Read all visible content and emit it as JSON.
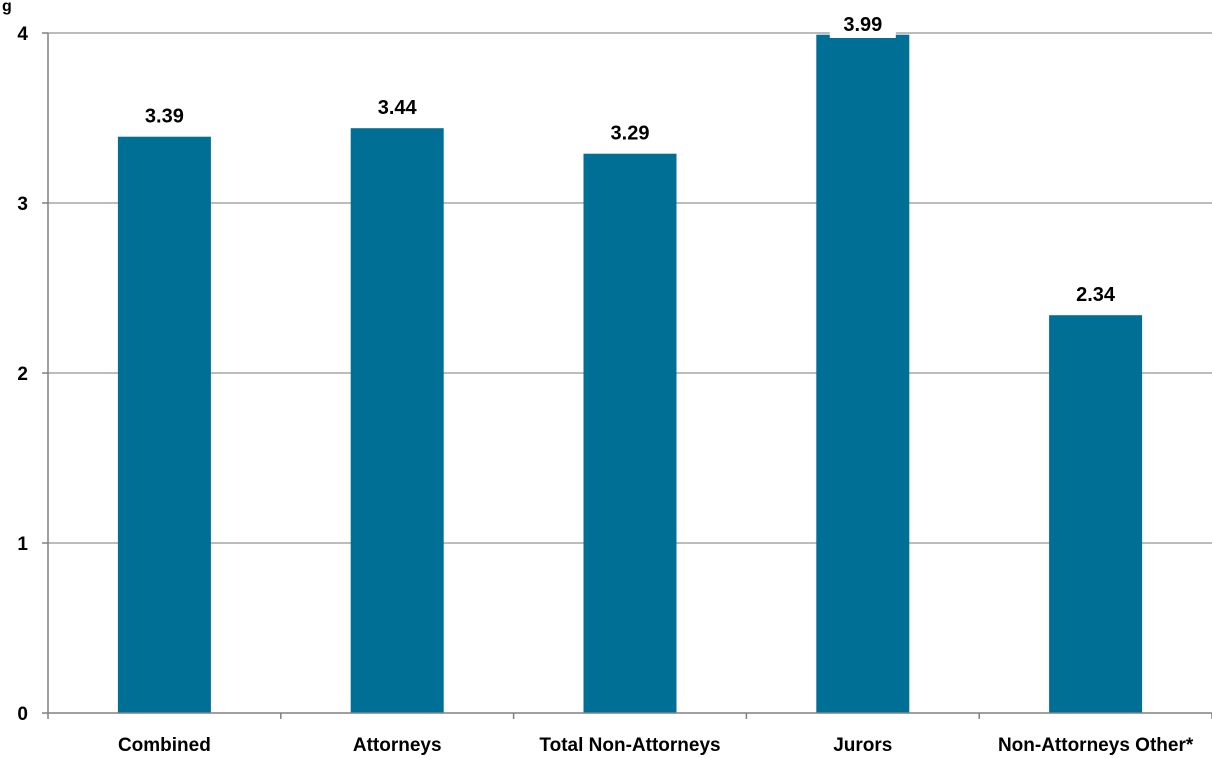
{
  "chart_data": {
    "type": "bar",
    "title": "",
    "xlabel": "",
    "ylabel": "",
    "top_left_fragment": "g",
    "categories": [
      "Combined",
      "Attorneys",
      "Total Non-Attorneys",
      "Jurors",
      "Non-Attorneys Other*"
    ],
    "values": [
      3.39,
      3.44,
      3.29,
      3.99,
      2.34
    ],
    "value_labels": [
      "3.39",
      "3.44",
      "3.29",
      "3.99",
      "2.34"
    ],
    "ylim": [
      0,
      4
    ],
    "yticks": [
      0,
      1,
      2,
      3,
      4
    ],
    "ytick_labels": [
      "0",
      "1",
      "2",
      "3",
      "4"
    ],
    "grid": true,
    "legend": "none",
    "bar_color": "#006f95",
    "grid_color": "#a6a6a6",
    "axis_color": "#808080"
  }
}
